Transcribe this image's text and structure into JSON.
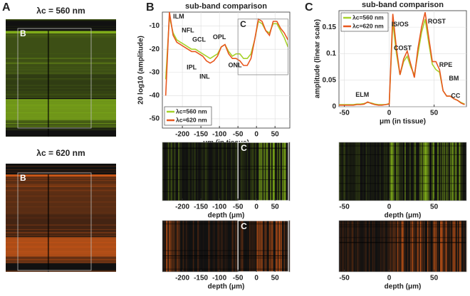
{
  "panel_labels": [
    "A",
    "B",
    "C"
  ],
  "chart_data": [
    {
      "type": "image",
      "title": "λc = 560 nm",
      "inset_label": "B",
      "color": "#8fc21c"
    },
    {
      "type": "image",
      "title": "λc = 620 nm",
      "inset_label": "B",
      "color": "#e0601a"
    },
    {
      "type": "line",
      "title": "sub-band comparison",
      "xlabel": "μm (in tissue)",
      "ylabel": "20 log10 (amplitude)",
      "xlim": [
        -254,
        90
      ],
      "xticks": [
        -200,
        -150,
        -100,
        -50,
        0,
        50
      ],
      "ylim": [
        -54,
        -4
      ],
      "yticks": [
        -50,
        -40,
        -30,
        -20,
        -10
      ],
      "grid": true,
      "legend": "lower left",
      "x": [
        -245,
        -235,
        -225,
        -215,
        -205,
        -195,
        -185,
        -175,
        -165,
        -155,
        -145,
        -135,
        -125,
        -115,
        -105,
        -95,
        -85,
        -75,
        -65,
        -55,
        -45,
        -35,
        -25,
        -15,
        -5,
        5,
        15,
        25,
        35,
        45,
        55,
        65,
        75,
        85
      ],
      "series": [
        {
          "name": "λc=560 nm",
          "color": "#a6d22a",
          "values": [
            -33,
            -6,
            -13,
            -16,
            -17,
            -18,
            -19,
            -20,
            -20,
            -21,
            -22,
            -23,
            -24,
            -23,
            -22,
            -19,
            -18,
            -21,
            -23,
            -22,
            -22,
            -24,
            -24,
            -22,
            -16,
            -8,
            -9,
            -12,
            -13,
            -9,
            -9,
            -12,
            -15,
            -19
          ]
        },
        {
          "name": "λc=620 nm",
          "color": "#e8571e",
          "values": [
            -40,
            -4,
            -14,
            -17,
            -18,
            -19,
            -20,
            -21,
            -21,
            -22,
            -23,
            -25,
            -26,
            -25,
            -23,
            -19,
            -18,
            -22,
            -24,
            -24,
            -25,
            -27,
            -27,
            -24,
            -16,
            -7,
            -8,
            -12,
            -14,
            -8,
            -8,
            -11,
            -13,
            -16
          ]
        }
      ],
      "annotations": [
        {
          "text": "ILM",
          "x": -210,
          "y": -6
        },
        {
          "text": "NFL",
          "x": -185,
          "y": -12
        },
        {
          "text": "GCL",
          "x": -155,
          "y": -16
        },
        {
          "text": "IPL",
          "x": -175,
          "y": -28
        },
        {
          "text": "INL",
          "x": -140,
          "y": -32
        },
        {
          "text": "OPL",
          "x": -100,
          "y": -15
        },
        {
          "text": "ONL",
          "x": -58,
          "y": -27
        }
      ],
      "inset_box": {
        "label": "C",
        "xlim": [
          -50,
          85
        ],
        "ylim": [
          -31,
          -7
        ]
      }
    },
    {
      "type": "line",
      "title": "sub-band comparison",
      "xlabel": "μm (in tissue)",
      "ylabel": "amplitude (linear scale)",
      "xlim": [
        -56,
        86
      ],
      "xticks": [
        -50,
        0,
        50
      ],
      "ylim": [
        0,
        0.181
      ],
      "yticks": [
        0,
        0.05,
        0.1,
        0.15
      ],
      "grid": true,
      "legend": "upper left",
      "x": [
        -56,
        -52,
        -48,
        -44,
        -40,
        -36,
        -32,
        -28,
        -24,
        -20,
        -16,
        -12,
        -8,
        -4,
        0,
        4,
        8,
        12,
        16,
        20,
        24,
        28,
        32,
        36,
        40,
        44,
        48,
        52,
        56,
        60,
        64,
        68,
        72,
        76,
        80,
        84
      ],
      "series": [
        {
          "name": "λc=560 nm",
          "color": "#a6d22a",
          "values": [
            0.004,
            0.004,
            0.004,
            0.004,
            0.004,
            0.005,
            0.005,
            0.006,
            0.008,
            0.007,
            0.005,
            0.004,
            0.004,
            0.004,
            0.006,
            0.16,
            0.1,
            0.06,
            0.085,
            0.095,
            0.075,
            0.06,
            0.1,
            0.14,
            0.165,
            0.12,
            0.08,
            0.07,
            0.065,
            0.03,
            0.02,
            0.02,
            0.015,
            0.012,
            0.008,
            0.005
          ]
        },
        {
          "name": "λc=620 nm",
          "color": "#e8571e",
          "values": [
            0.003,
            0.003,
            0.003,
            0.003,
            0.003,
            0.004,
            0.004,
            0.005,
            0.009,
            0.006,
            0.004,
            0.003,
            0.003,
            0.004,
            0.005,
            0.175,
            0.11,
            0.06,
            0.09,
            0.105,
            0.08,
            0.055,
            0.11,
            0.15,
            0.178,
            0.13,
            0.085,
            0.085,
            0.07,
            0.03,
            0.02,
            0.02,
            0.015,
            0.012,
            0.007,
            0.004
          ]
        }
      ],
      "annotations": [
        {
          "text": "ELM",
          "x": -30,
          "y": 0.022
        },
        {
          "text": "IS/OS",
          "x": 12,
          "y": 0.155
        },
        {
          "text": "COST",
          "x": 15,
          "y": 0.11
        },
        {
          "text": "ROST",
          "x": 53,
          "y": 0.16
        },
        {
          "text": "RPE",
          "x": 63,
          "y": 0.078
        },
        {
          "text": "BM",
          "x": 72,
          "y": 0.053
        },
        {
          "text": "CC",
          "x": 74,
          "y": 0.02
        }
      ]
    },
    {
      "type": "image",
      "xlabel": "depth (μm)",
      "xlim": [
        -254,
        90
      ],
      "xticks": [
        -200,
        -150,
        -100,
        -50,
        0,
        50
      ],
      "color": "#8fc21c",
      "inset_label": "C"
    },
    {
      "type": "image",
      "xlabel": "depth (μm)",
      "xlim": [
        -254,
        90
      ],
      "xticks": [
        -200,
        -150,
        -100,
        -50,
        0,
        50
      ],
      "color": "#e0601a",
      "inset_label": "C"
    },
    {
      "type": "image",
      "xlabel": "depth (μm)",
      "xlim": [
        -56,
        86
      ],
      "xticks": [
        -50,
        0,
        50
      ],
      "color": "#8fc21c"
    },
    {
      "type": "image",
      "xlabel": "depth (μm)",
      "xlim": [
        -56,
        86
      ],
      "xticks": [
        -50,
        0,
        50
      ],
      "color": "#e0601a"
    }
  ]
}
